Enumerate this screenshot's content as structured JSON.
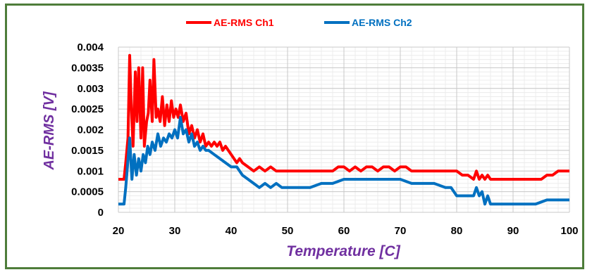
{
  "chart_data": {
    "type": "line",
    "xlabel": "Temperature [C]",
    "ylabel": "AE-RMS [V]",
    "xlim": [
      20,
      100
    ],
    "ylim": [
      0,
      0.004
    ],
    "x_ticks": [
      "20",
      "30",
      "40",
      "50",
      "60",
      "70",
      "80",
      "90",
      "100"
    ],
    "y_ticks": [
      "0",
      "0.0005",
      "0.001",
      "0.0015",
      "0.002",
      "0.0025",
      "0.003",
      "0.0035",
      "0.004"
    ],
    "grid": true,
    "legend_position": "top",
    "series": [
      {
        "name": "AE-RMS Ch1",
        "color": "#ff0000",
        "x": [
          20.0,
          21.0,
          21.3,
          21.7,
          22.0,
          22.3,
          22.6,
          23.0,
          23.3,
          23.6,
          24.0,
          24.3,
          24.6,
          25.0,
          25.3,
          25.6,
          26.0,
          26.3,
          26.7,
          27.0,
          27.4,
          27.8,
          28.2,
          28.6,
          29.0,
          29.4,
          29.8,
          30.2,
          30.6,
          31.0,
          31.5,
          32.0,
          32.5,
          33.0,
          33.5,
          34.0,
          34.5,
          35.0,
          35.5,
          36.0,
          36.5,
          37.0,
          37.5,
          38.0,
          38.5,
          39.0,
          39.5,
          40.0,
          40.5,
          41.0,
          41.5,
          42.0,
          43.0,
          44.0,
          45.0,
          46.0,
          47.0,
          48.0,
          49.0,
          50.0,
          52.0,
          54.0,
          56.0,
          58.0,
          59.0,
          60.0,
          61.0,
          62.0,
          63.0,
          64.0,
          65.0,
          66.0,
          67.0,
          68.0,
          69.0,
          70.0,
          71.0,
          72.0,
          74.0,
          76.0,
          78.0,
          80.0,
          81.0,
          82.0,
          83.0,
          83.5,
          84.0,
          84.5,
          85.0,
          85.5,
          86.0,
          87.0,
          88.0,
          90.0,
          92.0,
          94.0,
          95.0,
          96.0,
          97.0,
          98.0,
          99.0,
          100.0
        ],
        "y": [
          0.0008,
          0.0008,
          0.0012,
          0.0018,
          0.0038,
          0.0025,
          0.0016,
          0.0034,
          0.0022,
          0.0035,
          0.0018,
          0.0035,
          0.0016,
          0.0022,
          0.0024,
          0.0032,
          0.0022,
          0.0037,
          0.0023,
          0.0025,
          0.0022,
          0.0028,
          0.0021,
          0.0026,
          0.0022,
          0.0027,
          0.0023,
          0.0025,
          0.0023,
          0.0026,
          0.0022,
          0.0024,
          0.0019,
          0.0021,
          0.0018,
          0.002,
          0.0017,
          0.0019,
          0.0016,
          0.0017,
          0.0016,
          0.0017,
          0.0016,
          0.0017,
          0.0015,
          0.0016,
          0.0015,
          0.0014,
          0.0013,
          0.0012,
          0.0013,
          0.0012,
          0.0011,
          0.001,
          0.0011,
          0.001,
          0.0011,
          0.001,
          0.001,
          0.001,
          0.001,
          0.001,
          0.001,
          0.001,
          0.0011,
          0.0011,
          0.001,
          0.0011,
          0.001,
          0.0011,
          0.0011,
          0.001,
          0.0011,
          0.0011,
          0.001,
          0.0011,
          0.0011,
          0.001,
          0.001,
          0.001,
          0.001,
          0.001,
          0.0009,
          0.0009,
          0.0008,
          0.001,
          0.0008,
          0.0009,
          0.0008,
          0.0009,
          0.0008,
          0.0008,
          0.0008,
          0.0008,
          0.0008,
          0.0008,
          0.0008,
          0.0009,
          0.0009,
          0.001,
          0.001,
          0.001
        ]
      },
      {
        "name": "AE-RMS Ch2",
        "color": "#0070c0",
        "x": [
          20.0,
          21.0,
          21.3,
          21.6,
          22.0,
          22.4,
          22.8,
          23.2,
          23.6,
          24.0,
          24.4,
          24.8,
          25.2,
          25.6,
          26.0,
          26.5,
          27.0,
          27.5,
          28.0,
          28.5,
          29.0,
          29.5,
          30.0,
          30.5,
          31.0,
          31.5,
          32.0,
          32.5,
          33.0,
          33.5,
          34.0,
          34.5,
          35.0,
          35.5,
          36.0,
          37.0,
          38.0,
          39.0,
          40.0,
          41.0,
          42.0,
          43.0,
          44.0,
          45.0,
          46.0,
          47.0,
          48.0,
          49.0,
          50.0,
          52.0,
          54.0,
          56.0,
          58.0,
          60.0,
          62.0,
          64.0,
          66.0,
          68.0,
          70.0,
          72.0,
          74.0,
          76.0,
          78.0,
          79.0,
          80.0,
          81.0,
          82.0,
          83.0,
          83.5,
          84.0,
          84.5,
          85.0,
          85.5,
          86.0,
          87.0,
          88.0,
          90.0,
          92.0,
          94.0,
          96.0,
          98.0,
          100.0
        ],
        "y": [
          0.0002,
          0.0002,
          0.0006,
          0.0011,
          0.0018,
          0.0008,
          0.0014,
          0.0009,
          0.0013,
          0.001,
          0.0014,
          0.0012,
          0.0016,
          0.0014,
          0.0017,
          0.0015,
          0.0019,
          0.0016,
          0.0018,
          0.0017,
          0.0019,
          0.0018,
          0.002,
          0.0018,
          0.0023,
          0.0019,
          0.002,
          0.0017,
          0.0019,
          0.0016,
          0.0017,
          0.0015,
          0.0016,
          0.0015,
          0.0015,
          0.0014,
          0.0013,
          0.0012,
          0.0011,
          0.0011,
          0.0009,
          0.0008,
          0.0007,
          0.0006,
          0.0007,
          0.0006,
          0.0007,
          0.0006,
          0.0006,
          0.0006,
          0.0006,
          0.0007,
          0.0007,
          0.0008,
          0.0008,
          0.0008,
          0.0008,
          0.0008,
          0.0008,
          0.0007,
          0.0007,
          0.0007,
          0.0006,
          0.0006,
          0.0004,
          0.0004,
          0.0004,
          0.0004,
          0.0006,
          0.0004,
          0.0005,
          0.0002,
          0.0004,
          0.0002,
          0.0002,
          0.0002,
          0.0002,
          0.0002,
          0.0002,
          0.0003,
          0.0003,
          0.0003
        ]
      }
    ]
  }
}
